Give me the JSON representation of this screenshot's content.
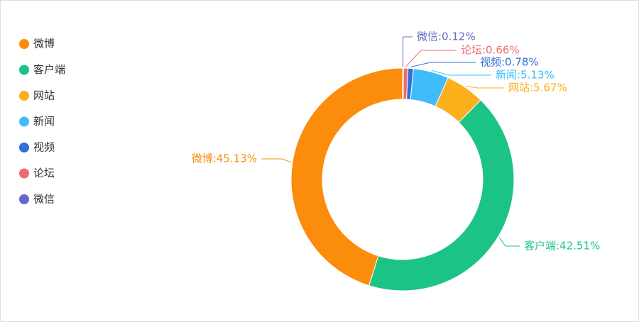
{
  "chart_data": {
    "type": "donut",
    "categories": [
      "微博",
      "客户端",
      "网站",
      "新闻",
      "视频",
      "论坛",
      "微信"
    ],
    "values": [
      45.13,
      42.51,
      5.67,
      5.13,
      0.78,
      0.66,
      0.12
    ],
    "value_labels": [
      "微博:45.13%",
      "客户端:42.51%",
      "网站:5.67%",
      "新闻:5.13%",
      "视频:0.78%",
      "论坛:0.66%",
      "微信:0.12%"
    ],
    "colors": [
      "#fb8c0c",
      "#1bc485",
      "#fbb01c",
      "#3fbcfa",
      "#2f6fd8",
      "#f06c6c",
      "#6767c8"
    ],
    "legend": "left"
  }
}
